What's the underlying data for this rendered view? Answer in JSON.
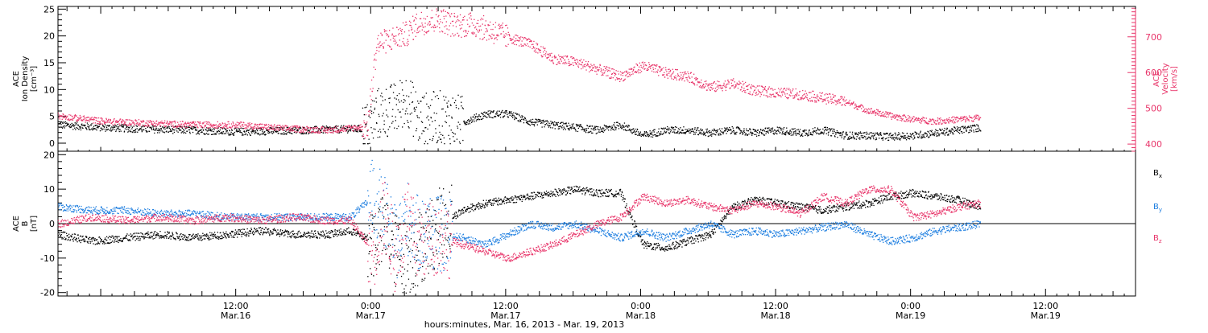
{
  "chart_data": [
    {
      "type": "scatter",
      "panel": "top",
      "left_axis_label": [
        "ACE",
        "Ion Density",
        "[cm⁻³]"
      ],
      "right_axis_label": [
        "ACE",
        "Velocity",
        "[km/s]"
      ],
      "left_ylim": [
        -1.5,
        25.5
      ],
      "right_ylim": [
        380,
        785
      ],
      "left_ticks": [
        "0",
        "5",
        "10",
        "15",
        "20",
        "25"
      ],
      "right_ticks": [
        "400",
        "500",
        "600",
        "700"
      ],
      "colors": {
        "density": "#000000",
        "velocity": "#e8356a"
      },
      "series": [
        {
          "name": "Ion Density",
          "color": "#000000",
          "axis": "left",
          "t_hours": [
            0,
            4,
            8,
            12,
            16,
            20,
            24,
            27.5,
            28.3,
            30,
            31,
            32,
            34,
            36,
            38,
            40,
            42,
            44,
            46,
            48,
            50,
            52,
            54,
            56,
            58,
            60,
            62,
            64,
            66,
            68,
            70,
            72,
            74,
            76,
            78,
            80,
            82
          ],
          "values": [
            3.5,
            3.0,
            2.7,
            2.5,
            2.2,
            2.4,
            2.6,
            2.8,
            5.5,
            6.5,
            8.5,
            4.5,
            5.0,
            4.0,
            5.5,
            5.5,
            4.0,
            3.5,
            3.0,
            2.5,
            3.5,
            1.5,
            2.5,
            2.5,
            2.0,
            2.5,
            2.0,
            2.5,
            2.0,
            2.5,
            1.5,
            1.5,
            1.3,
            1.5,
            2.0,
            2.5,
            3.0
          ]
        },
        {
          "name": "Velocity",
          "color": "#e8356a",
          "axis": "right",
          "t_hours": [
            0,
            4,
            8,
            12,
            16,
            20,
            24,
            27.5,
            28.3,
            30,
            31,
            32,
            34,
            35,
            37,
            40,
            42,
            44,
            46,
            48,
            50,
            52,
            54,
            56,
            58,
            60,
            62,
            64,
            66,
            68,
            70,
            72,
            74,
            76,
            78,
            80,
            82
          ],
          "values": [
            480,
            465,
            460,
            455,
            455,
            445,
            440,
            450,
            680,
            700,
            710,
            740,
            750,
            735,
            735,
            700,
            680,
            640,
            630,
            610,
            590,
            620,
            600,
            590,
            560,
            570,
            550,
            545,
            540,
            530,
            520,
            495,
            480,
            470,
            465,
            470,
            475
          ]
        }
      ]
    },
    {
      "type": "scatter",
      "panel": "bottom",
      "left_axis_label": [
        "ACE",
        "B",
        "[nT]"
      ],
      "ylim": [
        -21,
        21
      ],
      "ticks": [
        "-20",
        "-10",
        "0",
        "10",
        "20"
      ],
      "zero_line": true,
      "series": [
        {
          "name": "Bx",
          "legend_main": "B",
          "legend_sub": "x",
          "color": "#000000",
          "t_hours": [
            0,
            3,
            6,
            9,
            12,
            15,
            18,
            21,
            24,
            26,
            28,
            29,
            30,
            31,
            32,
            33,
            34,
            36,
            38,
            40,
            42,
            44,
            46,
            48,
            50,
            52,
            54,
            56,
            58,
            60,
            62,
            64,
            66,
            68,
            70,
            72,
            74,
            76,
            78,
            80,
            82
          ],
          "values": [
            -3,
            -5,
            -4,
            -3,
            -4,
            -3,
            -2,
            -3,
            -3,
            -2,
            -5,
            -2,
            -8,
            -10,
            -7,
            -4,
            0,
            4,
            6,
            7,
            8,
            9,
            10,
            9,
            9,
            -6,
            -7,
            -5,
            -3,
            5,
            7,
            6,
            5,
            4,
            5,
            6,
            8,
            9,
            8,
            7,
            5
          ]
        },
        {
          "name": "By",
          "legend_main": "B",
          "legend_sub": "y",
          "color": "#1f7fe0",
          "t_hours": [
            0,
            3,
            6,
            9,
            12,
            15,
            18,
            21,
            24,
            26,
            28,
            29,
            30,
            31,
            32,
            33,
            34,
            36,
            38,
            40,
            42,
            44,
            46,
            48,
            50,
            52,
            54,
            56,
            58,
            60,
            62,
            64,
            66,
            68,
            70,
            72,
            74,
            76,
            78,
            80,
            82
          ],
          "values": [
            5,
            4,
            4,
            3,
            3,
            2,
            2,
            2,
            2,
            2,
            8,
            3,
            -6,
            2,
            -3,
            -2,
            -3,
            -4,
            -6,
            -3,
            0,
            -1,
            0,
            -2,
            -4,
            -2,
            -4,
            -2,
            0,
            -3,
            -2,
            -3,
            -2,
            -1,
            0,
            -3,
            -5,
            -4,
            -2,
            -1,
            0
          ]
        },
        {
          "name": "Bz",
          "legend_main": "B",
          "legend_sub": "z",
          "color": "#e8356a",
          "t_hours": [
            0,
            3,
            6,
            9,
            12,
            15,
            18,
            21,
            24,
            26,
            28,
            29,
            30,
            31,
            32,
            33,
            34,
            36,
            38,
            40,
            42,
            44,
            46,
            48,
            50,
            52,
            54,
            56,
            58,
            60,
            62,
            64,
            66,
            68,
            70,
            72,
            74,
            76,
            78,
            80,
            82
          ],
          "values": [
            0,
            2,
            1,
            2,
            1,
            2,
            1,
            2,
            1,
            1,
            -8,
            3,
            -10,
            2,
            -6,
            -4,
            -4,
            -6,
            -8,
            -10,
            -8,
            -6,
            -3,
            0,
            2,
            8,
            6,
            7,
            5,
            4,
            6,
            5,
            3,
            8,
            6,
            10,
            10,
            2,
            3,
            5,
            6
          ]
        }
      ]
    }
  ],
  "x_axis": {
    "title": "hours:minutes, Mar. 16, 2013 - Mar. 19, 2013",
    "start_hours_offset": -3.8,
    "end_hours_offset": 92,
    "ticks": [
      {
        "time": "12:00",
        "date": "Mar.16"
      },
      {
        "time": "0:00",
        "date": "Mar.17"
      },
      {
        "time": "12:00",
        "date": "Mar.17"
      },
      {
        "time": "0:00",
        "date": "Mar.18"
      },
      {
        "time": "12:00",
        "date": "Mar.18"
      },
      {
        "time": "0:00",
        "date": "Mar.19"
      },
      {
        "time": "12:00",
        "date": "Mar.19"
      }
    ]
  }
}
